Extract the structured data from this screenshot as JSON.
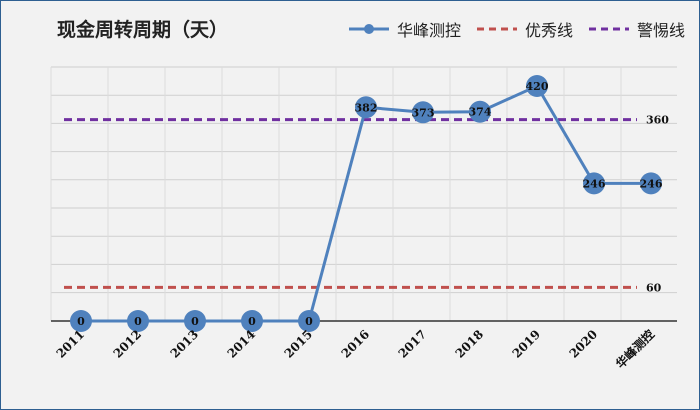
{
  "chart_data": {
    "type": "line",
    "title": "现金周转周期（天）",
    "categories": [
      "2011",
      "2012",
      "2013",
      "2014",
      "2015",
      "2016",
      "2017",
      "2018",
      "2019",
      "2020",
      "华峰测控"
    ],
    "series": [
      {
        "name": "华峰测控",
        "values": [
          0,
          0,
          0,
          0,
          0,
          382,
          373,
          374,
          420,
          246,
          246
        ],
        "color": "#4f81bd",
        "style": "line-with-markers"
      },
      {
        "name": "优秀线",
        "value": 60,
        "label": "60",
        "color": "#c0504d",
        "style": "dashed"
      },
      {
        "name": "警惕线",
        "value": 360,
        "label": "360",
        "color": "#7030a0",
        "style": "dashed"
      }
    ],
    "ylim": [
      -20,
      480
    ],
    "grid": "horizontal",
    "legend_position": "top-right"
  }
}
